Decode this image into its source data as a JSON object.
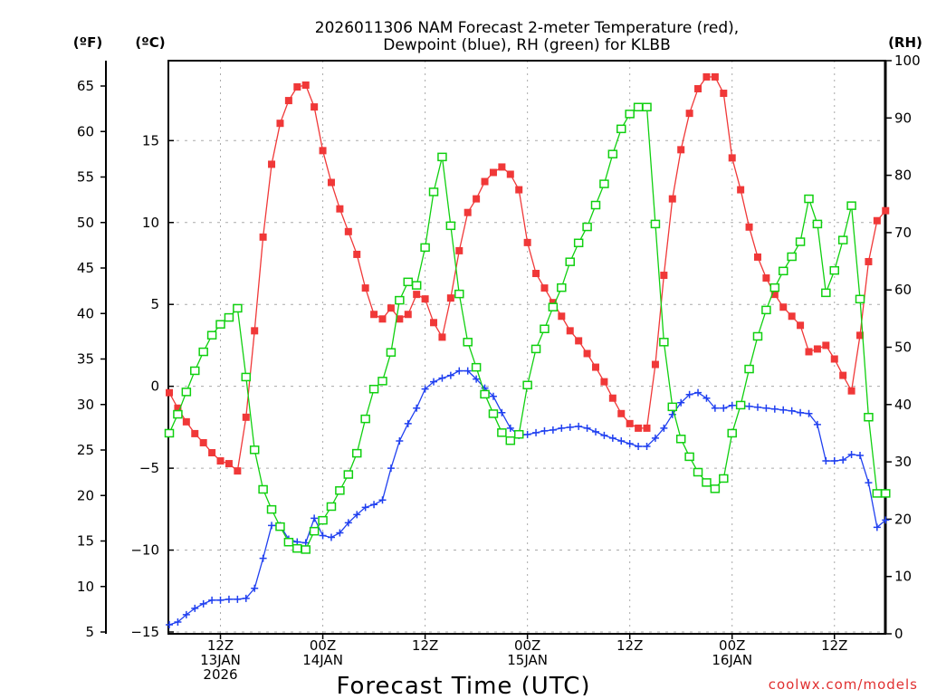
{
  "chart_data": {
    "type": "line",
    "title": [
      "2026011306 NAM Forecast 2-meter Temperature (red),",
      "Dewpoint (blue), RH (green) for KLBB"
    ],
    "xlabel": "Forecast Time (UTC)",
    "credit": "coolwx.com/models",
    "units": {
      "left_f": "(ºF)",
      "left_c": "(ºC)",
      "right": "(RH)"
    },
    "x_hours": {
      "start": 0,
      "end": 84,
      "step": 1,
      "start_time": "2026-01-13 06Z"
    },
    "x_ticks": [
      {
        "hour": 6,
        "labels": [
          "12Z",
          "13JAN",
          "2026"
        ]
      },
      {
        "hour": 18,
        "labels": [
          "00Z",
          "14JAN"
        ]
      },
      {
        "hour": 30,
        "labels": [
          "12Z"
        ]
      },
      {
        "hour": 42,
        "labels": [
          "00Z",
          "15JAN"
        ]
      },
      {
        "hour": 54,
        "labels": [
          "12Z"
        ]
      },
      {
        "hour": 66,
        "labels": [
          "00Z",
          "16JAN"
        ]
      },
      {
        "hour": 78,
        "labels": [
          "12Z"
        ]
      }
    ],
    "yF": {
      "range": [
        4.8,
        68.2
      ],
      "ticks": [
        "5",
        "10",
        "15",
        "20",
        "25",
        "30",
        "35",
        "40",
        "45",
        "50",
        "55",
        "60",
        "65"
      ]
    },
    "yC": {
      "ticks": [
        "15",
        "10",
        "5",
        "0",
        "−5",
        "−10",
        "−15"
      ],
      "values": [
        15,
        10,
        5,
        0,
        -5,
        -10,
        -15
      ]
    },
    "yRH": {
      "range": [
        0,
        100
      ],
      "ticks": [
        "0",
        "10",
        "20",
        "30",
        "40",
        "50",
        "60",
        "70",
        "80",
        "90",
        "100"
      ]
    },
    "grid": true,
    "series": [
      {
        "name": "2-meter Temperature (°F)",
        "color": "#f03838",
        "marker": "filled-square",
        "values": [
          31.3,
          29.6,
          28.1,
          26.8,
          25.8,
          24.7,
          23.8,
          23.5,
          22.7,
          28.6,
          38.1,
          48.4,
          56.4,
          60.9,
          63.4,
          64.9,
          65.1,
          62.7,
          57.9,
          54.4,
          51.5,
          49.0,
          46.5,
          42.8,
          39.9,
          39.4,
          40.6,
          39.4,
          39.9,
          42.1,
          41.6,
          39.0,
          37.4,
          41.7,
          46.9,
          51.1,
          52.6,
          54.5,
          55.5,
          56.1,
          55.3,
          53.6,
          47.8,
          44.4,
          42.8,
          41.2,
          39.7,
          38.1,
          37.0,
          35.6,
          34.1,
          32.5,
          30.7,
          29.0,
          27.9,
          27.4,
          27.4,
          34.4,
          44.2,
          52.6,
          58.0,
          62.0,
          64.7,
          66.0,
          66.0,
          64.2,
          57.1,
          53.6,
          49.5,
          46.2,
          43.9,
          42.1,
          40.7,
          39.7,
          38.7,
          35.8,
          36.1,
          36.5,
          35.0,
          33.2,
          31.5,
          37.6,
          45.7,
          50.2,
          51.3
        ]
      },
      {
        "name": "Dewpoint (°F)",
        "color": "#2040f0",
        "marker": "plus",
        "values": [
          5.8,
          6.1,
          6.9,
          7.6,
          8.1,
          8.5,
          8.5,
          8.6,
          8.6,
          8.7,
          9.8,
          13.1,
          16.7,
          16.7,
          15.2,
          14.9,
          14.8,
          17.5,
          15.6,
          15.4,
          15.9,
          17.0,
          17.9,
          18.7,
          19.0,
          19.5,
          23.0,
          26.0,
          27.9,
          29.6,
          31.7,
          32.5,
          32.9,
          33.2,
          33.7,
          33.7,
          32.8,
          31.8,
          30.9,
          29.1,
          27.4,
          26.6,
          26.7,
          26.9,
          27.1,
          27.2,
          27.4,
          27.5,
          27.6,
          27.4,
          27.0,
          26.6,
          26.3,
          26.0,
          25.7,
          25.4,
          25.4,
          26.3,
          27.4,
          28.9,
          30.2,
          31.1,
          31.3,
          30.7,
          29.6,
          29.6,
          29.9,
          29.9,
          29.8,
          29.7,
          29.6,
          29.5,
          29.4,
          29.3,
          29.1,
          29.0,
          27.8,
          23.8,
          23.8,
          23.9,
          24.5,
          24.4,
          21.4,
          16.5,
          17.3
        ]
      },
      {
        "name": "RH (%)",
        "color": "#10d010",
        "marker": "open-square",
        "axis": "right",
        "values": [
          35.0,
          38.3,
          42.2,
          45.9,
          49.2,
          52.1,
          54.0,
          55.2,
          56.8,
          44.8,
          32.1,
          25.2,
          21.7,
          18.7,
          16.0,
          14.9,
          14.7,
          17.9,
          19.8,
          22.2,
          25.0,
          27.8,
          31.5,
          37.5,
          42.7,
          44.1,
          49.1,
          58.2,
          61.4,
          60.8,
          67.4,
          77.1,
          83.2,
          71.2,
          59.3,
          50.9,
          46.5,
          41.8,
          38.4,
          35.1,
          33.7,
          34.8,
          43.4,
          49.7,
          53.2,
          57.0,
          60.4,
          64.9,
          68.2,
          71.0,
          74.8,
          78.5,
          83.7,
          88.1,
          90.7,
          91.9,
          91.9,
          71.5,
          50.9,
          39.6,
          34.0,
          30.9,
          28.2,
          26.4,
          25.3,
          27.1,
          35.0,
          39.9,
          46.2,
          51.9,
          56.5,
          60.4,
          63.3,
          65.8,
          68.4,
          75.9,
          71.5,
          59.5,
          63.4,
          68.7,
          74.7,
          58.4,
          37.8,
          24.5,
          24.5
        ]
      }
    ]
  }
}
